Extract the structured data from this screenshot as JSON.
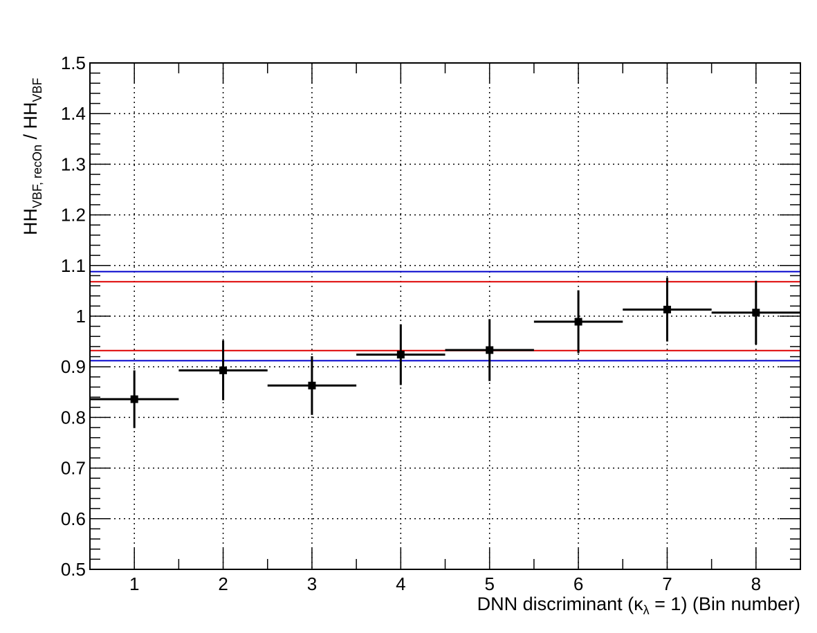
{
  "chart_data": {
    "type": "scatter",
    "xlabel": "DNN discriminant (κλ = 1) (Bin number)",
    "ylabel": "HH_VBF, recOn / HH_VBF",
    "xlabel_parts": {
      "before": "DNN discriminant (",
      "kappa": "κ",
      "lambda": "λ",
      "after": " = 1) (Bin number)"
    },
    "ylabel_parts": {
      "num_main": "HH",
      "num_sub": "VBF, recOn",
      "sep": " / ",
      "den_main": "HH",
      "den_sub": "VBF"
    },
    "xlim": [
      0.5,
      8.5
    ],
    "ylim": [
      0.5,
      1.5
    ],
    "grid": true,
    "x_ticks": [
      "1",
      "2",
      "3",
      "4",
      "5",
      "6",
      "7",
      "8"
    ],
    "y_ticks": [
      "0.5",
      "0.6",
      "0.7",
      "0.8",
      "0.9",
      "1",
      "1.1",
      "1.2",
      "1.3",
      "1.4",
      "1.5"
    ],
    "x_tick_values": [
      1,
      2,
      3,
      4,
      5,
      6,
      7,
      8
    ],
    "y_tick_values": [
      0.5,
      0.6,
      0.7,
      0.8,
      0.9,
      1.0,
      1.1,
      1.2,
      1.3,
      1.4,
      1.5
    ],
    "points": [
      {
        "x": 1,
        "y": 0.836,
        "xerr": 0.5,
        "yerr_low": 0.057,
        "yerr_high": 0.057
      },
      {
        "x": 2,
        "y": 0.893,
        "xerr": 0.5,
        "yerr_low": 0.059,
        "yerr_high": 0.059
      },
      {
        "x": 3,
        "y": 0.863,
        "xerr": 0.5,
        "yerr_low": 0.058,
        "yerr_high": 0.058
      },
      {
        "x": 4,
        "y": 0.924,
        "xerr": 0.5,
        "yerr_low": 0.06,
        "yerr_high": 0.06
      },
      {
        "x": 5,
        "y": 0.933,
        "xerr": 0.5,
        "yerr_low": 0.061,
        "yerr_high": 0.061
      },
      {
        "x": 6,
        "y": 0.989,
        "xerr": 0.5,
        "yerr_low": 0.062,
        "yerr_high": 0.062
      },
      {
        "x": 7,
        "y": 1.013,
        "xerr": 0.5,
        "yerr_low": 0.063,
        "yerr_high": 0.063
      },
      {
        "x": 8,
        "y": 1.007,
        "xerr": 0.5,
        "yerr_low": 0.063,
        "yerr_high": 0.063
      }
    ],
    "reference_lines": [
      {
        "y": 1.088,
        "color": "#0000cc"
      },
      {
        "y": 1.068,
        "color": "#dd0000"
      },
      {
        "y": 0.932,
        "color": "#dd0000"
      },
      {
        "y": 0.912,
        "color": "#0000cc"
      }
    ],
    "colors": {
      "marker": "#000000",
      "blue_line": "#0000cc",
      "red_line": "#dd0000"
    }
  }
}
